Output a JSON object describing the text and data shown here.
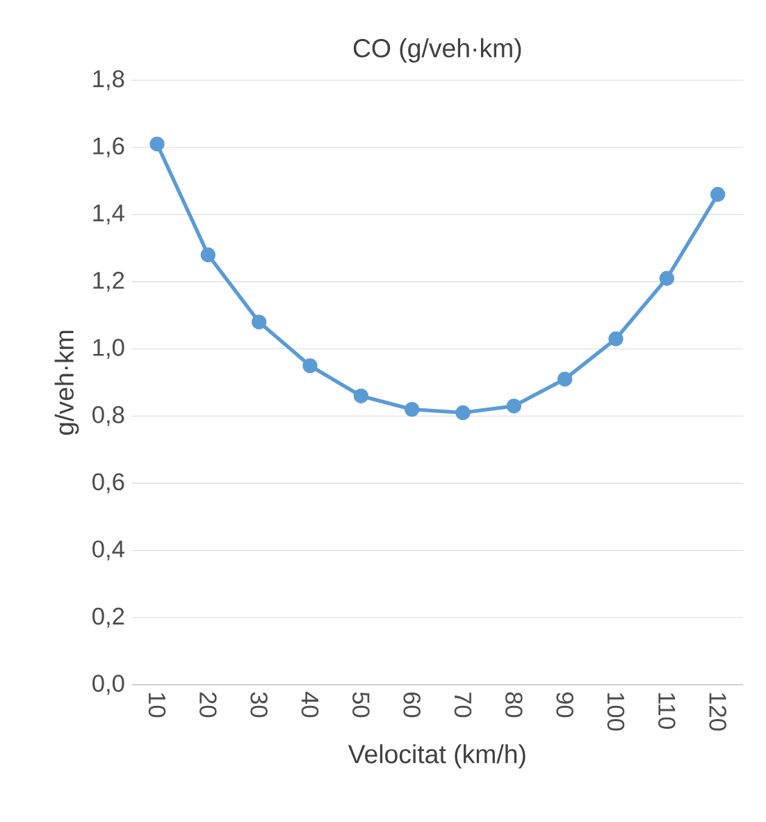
{
  "chart_data": {
    "type": "line",
    "title": "CO (g/veh·km)",
    "xlabel": "Velocitat (km/h)",
    "ylabel": "g/veh·km",
    "categories": [
      "10",
      "20",
      "30",
      "40",
      "50",
      "60",
      "70",
      "80",
      "90",
      "100",
      "110",
      "120"
    ],
    "series": [
      {
        "color": "#5b9bd5",
        "values": [
          1.61,
          1.28,
          1.08,
          0.95,
          0.86,
          0.82,
          0.81,
          0.83,
          0.91,
          1.03,
          1.21,
          1.46
        ]
      }
    ],
    "ylim": [
      0,
      1.8
    ],
    "yticks": [
      {
        "value": 0,
        "label": "0,0"
      },
      {
        "value": 0.2,
        "label": "0,2"
      },
      {
        "value": 0.4,
        "label": "0,4"
      },
      {
        "value": 0.6,
        "label": "0,6"
      },
      {
        "value": 0.8,
        "label": "0,8"
      },
      {
        "value": 1.0,
        "label": "1,0"
      },
      {
        "value": 1.2,
        "label": "1,2"
      },
      {
        "value": 1.4,
        "label": "1,4"
      },
      {
        "value": 1.6,
        "label": "1,6"
      },
      {
        "value": 1.8,
        "label": "1,8"
      }
    ],
    "grid": "y",
    "marker": "circle",
    "line_style": "solid"
  }
}
